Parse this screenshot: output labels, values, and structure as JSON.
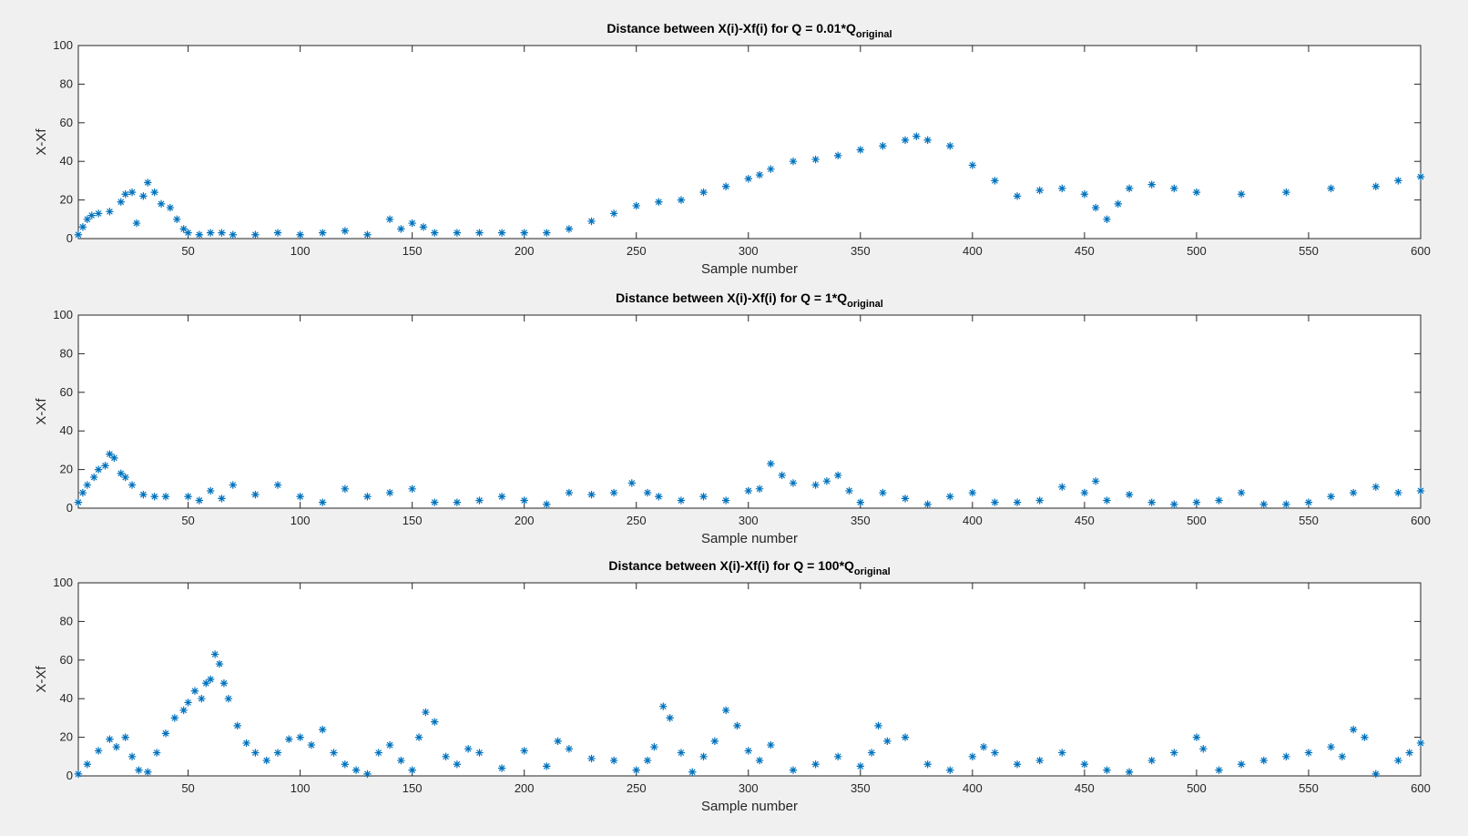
{
  "colors": {
    "marker": "#0072bd",
    "background": "#f0f0f0",
    "axes": "#ffffff",
    "axis_line": "#262626"
  },
  "chart_data": [
    {
      "type": "scatter",
      "marker": "*",
      "title_main": "Distance between X(i)-Xf(i) for Q = 0.01*Q",
      "title_sub": "original",
      "xlabel": "Sample number",
      "ylabel": "X-Xf",
      "xlim": [
        1,
        600
      ],
      "ylim": [
        0,
        100
      ],
      "xticks": [
        50,
        100,
        150,
        200,
        250,
        300,
        350,
        400,
        450,
        500,
        550,
        600
      ],
      "yticks": [
        0,
        20,
        40,
        60,
        80,
        100
      ],
      "x": [
        1,
        3,
        5,
        7,
        10,
        15,
        20,
        22,
        25,
        27,
        30,
        32,
        35,
        38,
        42,
        45,
        48,
        50,
        55,
        60,
        65,
        70,
        80,
        90,
        100,
        110,
        120,
        130,
        140,
        145,
        150,
        155,
        160,
        170,
        180,
        190,
        200,
        210,
        220,
        230,
        240,
        250,
        260,
        270,
        280,
        290,
        300,
        305,
        310,
        320,
        330,
        340,
        350,
        360,
        370,
        375,
        380,
        390,
        400,
        410,
        420,
        430,
        440,
        450,
        455,
        460,
        465,
        470,
        480,
        490,
        500,
        520,
        540,
        560,
        580,
        590,
        600
      ],
      "y": [
        2,
        6,
        10,
        12,
        13,
        14,
        19,
        23,
        24,
        8,
        22,
        29,
        24,
        18,
        16,
        10,
        5,
        3,
        2,
        3,
        3,
        2,
        2,
        3,
        2,
        3,
        4,
        2,
        10,
        5,
        8,
        6,
        3,
        3,
        3,
        3,
        3,
        3,
        5,
        9,
        13,
        17,
        19,
        20,
        24,
        27,
        31,
        33,
        36,
        40,
        41,
        43,
        46,
        48,
        51,
        53,
        51,
        48,
        38,
        30,
        22,
        25,
        26,
        23,
        16,
        10,
        18,
        26,
        28,
        26,
        24,
        23,
        24,
        26,
        27,
        30,
        32
      ]
    },
    {
      "type": "scatter",
      "marker": "*",
      "title_main": "Distance between X(i)-Xf(i) for Q = 1*Q",
      "title_sub": "original",
      "xlabel": "Sample number",
      "ylabel": "X-Xf",
      "xlim": [
        1,
        600
      ],
      "ylim": [
        0,
        100
      ],
      "xticks": [
        50,
        100,
        150,
        200,
        250,
        300,
        350,
        400,
        450,
        500,
        550,
        600
      ],
      "yticks": [
        0,
        20,
        40,
        60,
        80,
        100
      ],
      "x": [
        1,
        3,
        5,
        8,
        10,
        13,
        15,
        17,
        20,
        22,
        25,
        30,
        35,
        40,
        50,
        55,
        60,
        65,
        70,
        80,
        90,
        100,
        110,
        120,
        130,
        140,
        150,
        160,
        170,
        180,
        190,
        200,
        210,
        220,
        230,
        240,
        248,
        255,
        260,
        270,
        280,
        290,
        300,
        305,
        310,
        315,
        320,
        330,
        335,
        340,
        345,
        350,
        360,
        370,
        380,
        390,
        400,
        410,
        420,
        430,
        440,
        450,
        455,
        460,
        470,
        480,
        490,
        500,
        510,
        520,
        530,
        540,
        550,
        560,
        570,
        580,
        590,
        600
      ],
      "y": [
        3,
        8,
        12,
        16,
        20,
        22,
        28,
        26,
        18,
        16,
        12,
        7,
        6,
        6,
        6,
        4,
        9,
        5,
        12,
        7,
        12,
        6,
        3,
        10,
        6,
        8,
        10,
        3,
        3,
        4,
        6,
        4,
        2,
        8,
        7,
        8,
        13,
        8,
        6,
        4,
        6,
        4,
        9,
        10,
        23,
        17,
        13,
        12,
        14,
        17,
        9,
        3,
        8,
        5,
        2,
        6,
        8,
        3,
        3,
        4,
        11,
        8,
        14,
        4,
        7,
        3,
        2,
        3,
        4,
        8,
        2,
        2,
        3,
        6,
        8,
        11,
        8,
        9
      ]
    },
    {
      "type": "scatter",
      "marker": "*",
      "title_main": "Distance between X(i)-Xf(i) for Q = 100*Q",
      "title_sub": "original",
      "xlabel": "Sample number",
      "ylabel": "X-Xf",
      "xlim": [
        1,
        600
      ],
      "ylim": [
        0,
        100
      ],
      "xticks": [
        50,
        100,
        150,
        200,
        250,
        300,
        350,
        400,
        450,
        500,
        550,
        600
      ],
      "yticks": [
        0,
        20,
        40,
        60,
        80,
        100
      ],
      "x": [
        1,
        5,
        10,
        15,
        18,
        22,
        25,
        28,
        32,
        36,
        40,
        44,
        48,
        50,
        53,
        56,
        58,
        60,
        62,
        64,
        66,
        68,
        72,
        76,
        80,
        85,
        90,
        95,
        100,
        105,
        110,
        115,
        120,
        125,
        130,
        135,
        140,
        145,
        150,
        153,
        156,
        160,
        165,
        170,
        175,
        180,
        190,
        200,
        210,
        215,
        220,
        230,
        240,
        250,
        255,
        258,
        262,
        265,
        270,
        275,
        280,
        285,
        290,
        295,
        300,
        305,
        310,
        320,
        330,
        340,
        350,
        355,
        358,
        362,
        370,
        380,
        390,
        400,
        405,
        410,
        420,
        430,
        440,
        450,
        460,
        470,
        480,
        490,
        500,
        503,
        510,
        520,
        530,
        540,
        550,
        560,
        565,
        570,
        575,
        580,
        590,
        595,
        600
      ],
      "y": [
        1,
        6,
        13,
        19,
        15,
        20,
        10,
        3,
        2,
        12,
        22,
        30,
        34,
        38,
        44,
        40,
        48,
        50,
        63,
        58,
        48,
        40,
        26,
        17,
        12,
        8,
        12,
        19,
        20,
        16,
        24,
        12,
        6,
        3,
        1,
        12,
        16,
        8,
        3,
        20,
        33,
        28,
        10,
        6,
        14,
        12,
        4,
        13,
        5,
        18,
        14,
        9,
        8,
        3,
        8,
        15,
        36,
        30,
        12,
        2,
        10,
        18,
        34,
        26,
        13,
        8,
        16,
        3,
        6,
        10,
        5,
        12,
        26,
        18,
        20,
        6,
        3,
        10,
        15,
        12,
        6,
        8,
        12,
        6,
        3,
        2,
        8,
        12,
        20,
        14,
        3,
        6,
        8,
        10,
        12,
        15,
        10,
        24,
        20,
        1,
        8,
        12,
        17
      ]
    }
  ]
}
